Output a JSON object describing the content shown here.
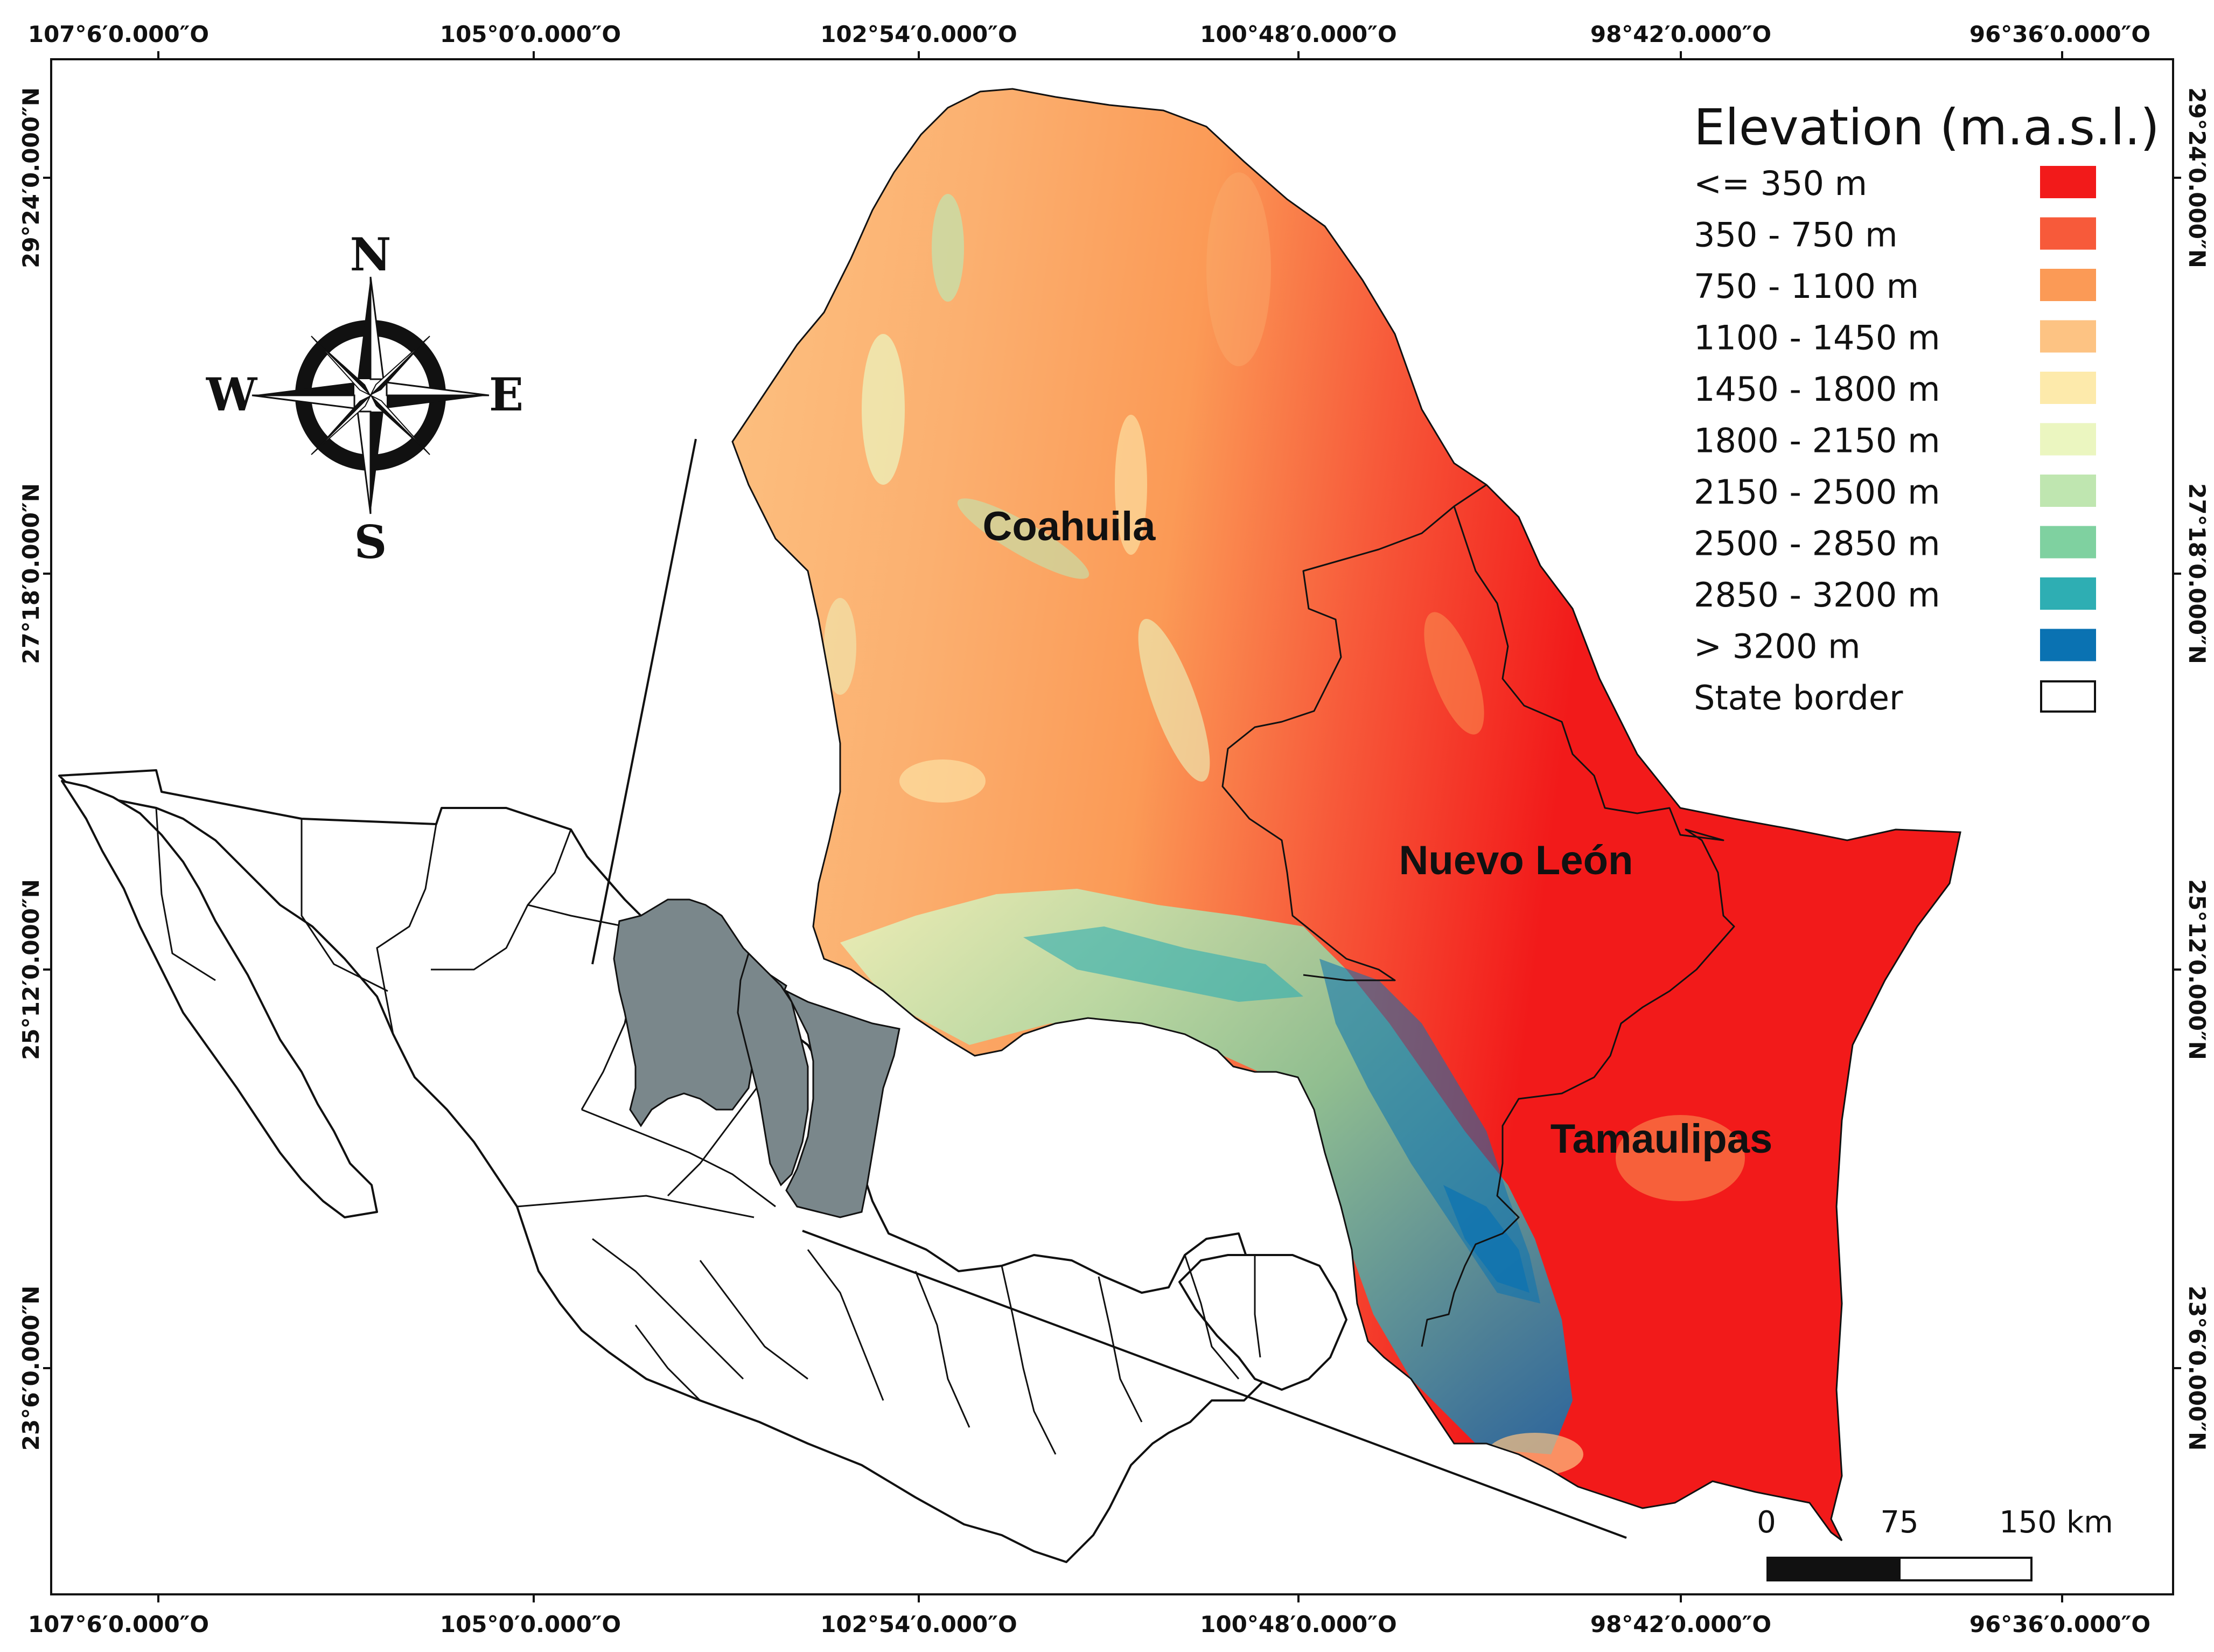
{
  "coordinates": {
    "longitudes": [
      "107°6′0.000″O",
      "105°0′0.000″O",
      "102°54′0.000″O",
      "100°48′0.000″O",
      "98°42′0.000″O",
      "96°36′0.000″O"
    ],
    "latitudes": [
      "29°24′0.000″N",
      "27°18′0.000″N",
      "25°12′0.000″N",
      "23°6′0.000″N"
    ]
  },
  "legend": {
    "title": "Elevation (m.a.s.l.)",
    "items": [
      {
        "label": "<= 350 m",
        "color": "#f21a1a"
      },
      {
        "label": "350 - 750 m",
        "color": "#f75a3a"
      },
      {
        "label": "750 - 1100 m",
        "color": "#fb9a56"
      },
      {
        "label": "1100 - 1450 m",
        "color": "#fdc383"
      },
      {
        "label": "1450 - 1800 m",
        "color": "#fdeaab"
      },
      {
        "label": "1800 - 2150  m",
        "color": "#ebf6c0"
      },
      {
        "label": "2150 - 2500 m",
        "color": "#bfe6b0"
      },
      {
        "label": "2500 - 2850 m",
        "color": "#7fd1a0"
      },
      {
        "label": "2850 - 3200 m",
        "color": "#2eaeb3"
      },
      {
        "label": "> 3200 m",
        "color": "#0a72b2"
      },
      {
        "label": "State border",
        "color": "#ffffff"
      }
    ]
  },
  "states": {
    "coahuila": "Coahuila",
    "nuevo_leon": "Nuevo León",
    "tamaulipas": "Tamaulipas"
  },
  "compass": {
    "n": "N",
    "s": "S",
    "e": "E",
    "w": "W"
  },
  "scale_bar": {
    "label_0": "0",
    "label_mid": "75",
    "label_end": "150 km"
  },
  "locator_highlight_color": "#7a878b"
}
